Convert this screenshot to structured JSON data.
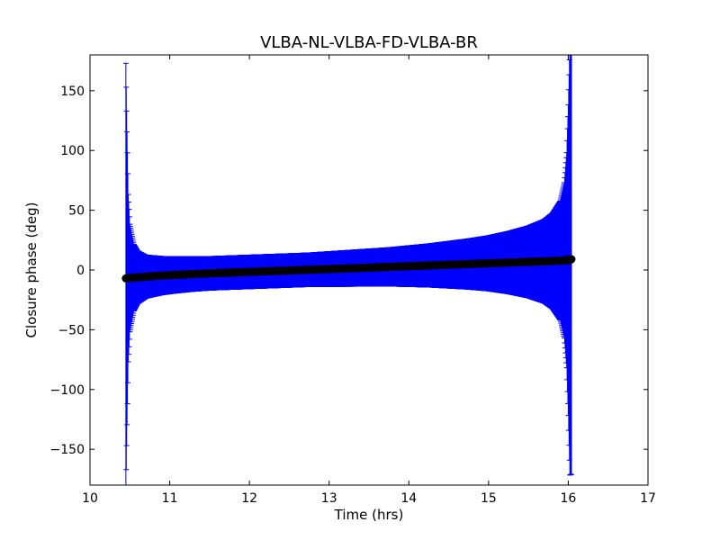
{
  "chart_data": {
    "type": "scatter",
    "title": "VLBA-NL-VLBA-FD-VLBA-BR",
    "xlabel": "Time (hrs)",
    "ylabel": "Closure phase (deg)",
    "xlim": [
      10,
      17
    ],
    "ylim": [
      -180,
      180
    ],
    "xticks": [
      10,
      11,
      12,
      13,
      14,
      15,
      16,
      17
    ],
    "xtick_labels": [
      "10",
      "11",
      "12",
      "13",
      "14",
      "15",
      "16",
      "17"
    ],
    "yticks": [
      -150,
      -100,
      -50,
      0,
      50,
      100,
      150
    ],
    "ytick_labels": [
      "−150",
      "−100",
      "−50",
      "0",
      "50",
      "100",
      "150"
    ],
    "grid": false,
    "legend": false,
    "colors": {
      "points": "#000000",
      "error_bars": "#0000ff"
    },
    "series": [
      {
        "marker": "circle",
        "x": [
          10.45,
          10.46,
          10.48,
          10.5,
          10.55,
          10.6,
          10.7,
          10.8,
          10.9,
          11.0,
          11.25,
          11.5,
          11.75,
          12.0,
          12.25,
          12.5,
          12.75,
          13.0,
          13.25,
          13.5,
          13.75,
          14.0,
          14.25,
          14.5,
          14.75,
          15.0,
          15.25,
          15.5,
          15.7,
          15.8,
          15.9,
          15.95,
          15.98,
          16.0,
          16.02,
          16.04
        ],
        "y": [
          -7.0,
          -7.0,
          -6.8,
          -6.7,
          -6.4,
          -6.1,
          -5.6,
          -5.1,
          -4.7,
          -4.3,
          -3.5,
          -2.8,
          -2.2,
          -1.6,
          -1.0,
          -0.4,
          0.2,
          0.8,
          1.4,
          2.0,
          2.6,
          3.2,
          3.8,
          4.4,
          5.0,
          5.6,
          6.2,
          6.8,
          7.3,
          7.6,
          7.9,
          8.1,
          8.2,
          8.3,
          8.4,
          9.0
        ],
        "yerr": [
          180,
          140,
          70,
          45,
          28,
          22,
          18,
          17,
          16,
          15.5,
          14.5,
          14,
          14,
          14,
          14,
          14,
          14,
          14.5,
          15,
          15.5,
          16,
          17,
          18,
          19.5,
          21,
          23,
          26,
          30,
          35,
          40,
          50,
          65,
          90,
          130,
          180,
          180
        ]
      }
    ]
  }
}
